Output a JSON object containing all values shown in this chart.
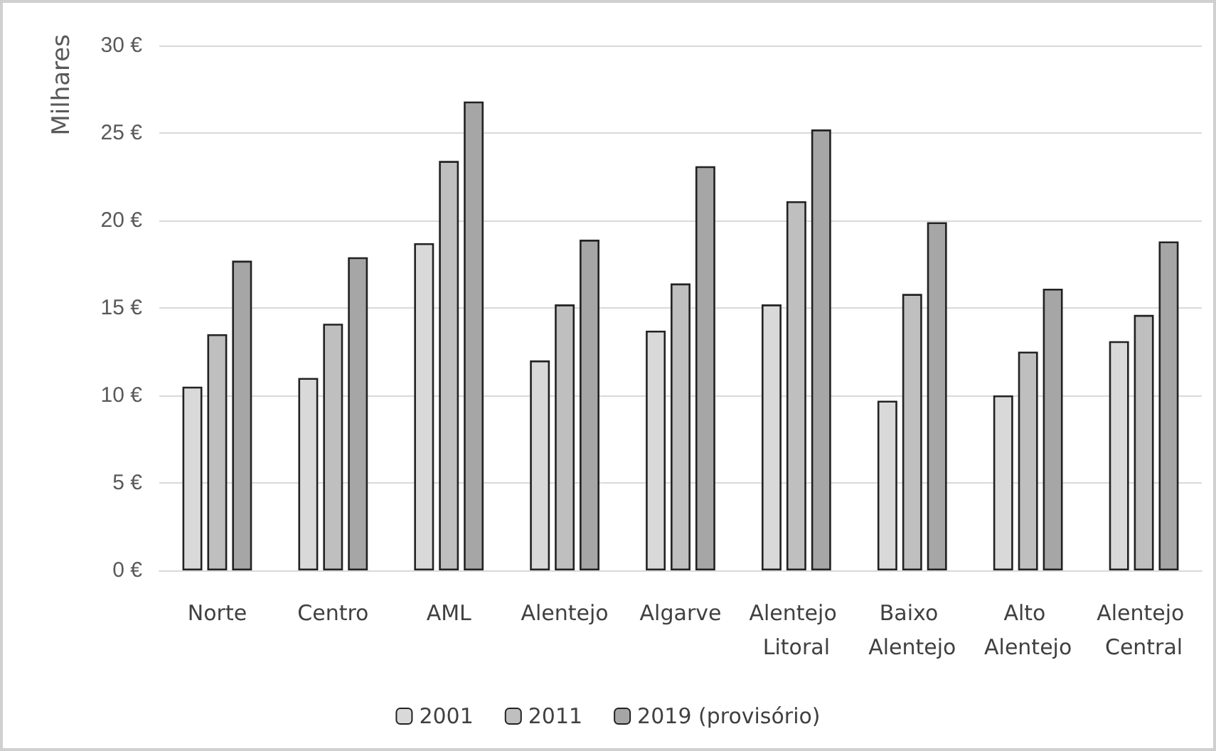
{
  "chart_data": {
    "type": "bar",
    "ylabel": "Milhares",
    "categories": [
      "Norte",
      "Centro",
      "AML",
      "Alentejo",
      "Algarve",
      "Alentejo Litoral",
      "Baixo Alentejo",
      "Alto Alentejo",
      "Alentejo Central"
    ],
    "series": [
      {
        "name": "2001",
        "color": "#d9d9d9",
        "values": [
          10.5,
          11.0,
          18.7,
          12.0,
          13.7,
          15.2,
          9.7,
          10.0,
          13.1
        ]
      },
      {
        "name": "2011",
        "color": "#bfbfbf",
        "values": [
          13.5,
          14.1,
          23.4,
          15.2,
          16.4,
          21.1,
          15.8,
          12.5,
          14.6
        ]
      },
      {
        "name": "2019 (provisório)",
        "color": "#a6a6a6",
        "values": [
          17.7,
          17.9,
          26.8,
          18.9,
          23.1,
          25.2,
          19.9,
          16.1,
          18.8
        ]
      }
    ],
    "ylim": [
      0,
      30
    ],
    "yticks": [
      {
        "value": 0,
        "label": "0 €"
      },
      {
        "value": 5,
        "label": "5 €"
      },
      {
        "value": 10,
        "label": "10 €"
      },
      {
        "value": 15,
        "label": "15 €"
      },
      {
        "value": 20,
        "label": "20 €"
      },
      {
        "value": 25,
        "label": "25 €"
      },
      {
        "value": 30,
        "label": "30 €"
      }
    ],
    "grid": "y",
    "legend": "bottom"
  }
}
